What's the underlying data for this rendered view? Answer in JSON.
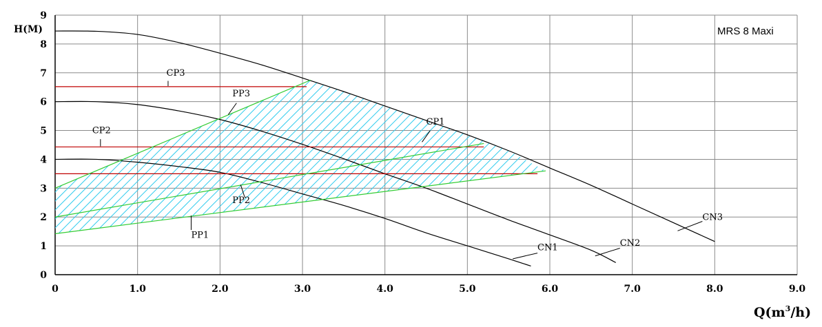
{
  "chart_data": {
    "type": "line",
    "title": "MRS 8 Maxi",
    "ylabel": "H(M)",
    "xlabel_prefix": "Q(",
    "xlabel_unit": "m",
    "xlabel_sup": "3",
    "xlabel_suffix": "/h)",
    "xlim": [
      0,
      9
    ],
    "ylim": [
      0,
      9
    ],
    "grid": true,
    "x_ticks": [
      "0",
      "1.0",
      "2.0",
      "3.0",
      "4.0",
      "5.0",
      "6.0",
      "7.0",
      "8.0",
      "9.0"
    ],
    "y_ticks": [
      "0",
      "1",
      "2",
      "3",
      "4",
      "5",
      "6",
      "7",
      "8",
      "9"
    ],
    "colors": {
      "cn": "#000000",
      "cp": "#c00000",
      "pp": "#33cc33",
      "hatch": "#33ccee"
    },
    "series": [
      {
        "name": "CN3",
        "group": "cn",
        "points": [
          [
            0,
            8.45
          ],
          [
            0.5,
            8.44
          ],
          [
            1.0,
            8.33
          ],
          [
            1.5,
            8.05
          ],
          [
            2.0,
            7.68
          ],
          [
            2.5,
            7.28
          ],
          [
            3.0,
            6.82
          ],
          [
            3.5,
            6.35
          ],
          [
            4.0,
            5.85
          ],
          [
            4.5,
            5.35
          ],
          [
            5.0,
            4.85
          ],
          [
            5.5,
            4.3
          ],
          [
            6.0,
            3.7
          ],
          [
            6.5,
            3.1
          ],
          [
            7.0,
            2.45
          ],
          [
            7.5,
            1.8
          ],
          [
            8.0,
            1.15
          ]
        ],
        "label_at": [
          7.85,
          1.9
        ]
      },
      {
        "name": "CN2",
        "group": "cn",
        "points": [
          [
            0,
            6.0
          ],
          [
            0.5,
            6.0
          ],
          [
            1.0,
            5.9
          ],
          [
            1.5,
            5.68
          ],
          [
            2.0,
            5.38
          ],
          [
            2.5,
            4.98
          ],
          [
            3.0,
            4.52
          ],
          [
            3.5,
            4.02
          ],
          [
            4.0,
            3.5
          ],
          [
            4.5,
            3.0
          ],
          [
            5.0,
            2.45
          ],
          [
            5.5,
            1.9
          ],
          [
            6.0,
            1.38
          ],
          [
            6.5,
            0.85
          ],
          [
            6.8,
            0.42
          ]
        ],
        "label_at": [
          6.85,
          1.0
        ]
      },
      {
        "name": "CN1",
        "group": "cn",
        "points": [
          [
            0,
            4.0
          ],
          [
            0.5,
            4.0
          ],
          [
            1.0,
            3.9
          ],
          [
            1.5,
            3.75
          ],
          [
            2.0,
            3.55
          ],
          [
            2.5,
            3.2
          ],
          [
            3.0,
            2.8
          ],
          [
            3.5,
            2.4
          ],
          [
            4.0,
            1.95
          ],
          [
            4.5,
            1.45
          ],
          [
            5.0,
            1.0
          ],
          [
            5.5,
            0.55
          ],
          [
            5.77,
            0.3
          ]
        ],
        "label_at": [
          5.85,
          0.85
        ]
      },
      {
        "name": "CP3",
        "group": "cp",
        "points": [
          [
            0,
            6.52
          ],
          [
            3.05,
            6.52
          ]
        ],
        "label_at": [
          1.35,
          6.9
        ]
      },
      {
        "name": "CP2",
        "group": "cp",
        "points": [
          [
            0,
            4.43
          ],
          [
            5.2,
            4.43
          ]
        ],
        "label_at": [
          0.45,
          4.9
        ]
      },
      {
        "name": "CP1",
        "group": "cp",
        "points": [
          [
            0,
            3.5
          ],
          [
            5.85,
            3.5
          ]
        ],
        "label_at": [
          4.5,
          5.2
        ]
      },
      {
        "name": "PP3",
        "group": "pp",
        "points": [
          [
            0,
            3.0
          ],
          [
            3.1,
            6.75
          ]
        ],
        "label_at": [
          2.15,
          6.18
        ]
      },
      {
        "name": "PP2",
        "group": "pp",
        "points": [
          [
            0,
            2.0
          ],
          [
            5.2,
            4.55
          ]
        ],
        "label_at": [
          2.15,
          2.48
        ]
      },
      {
        "name": "PP1",
        "group": "pp",
        "points": [
          [
            0,
            1.42
          ],
          [
            5.95,
            3.6
          ]
        ],
        "label_at": [
          1.65,
          1.28
        ]
      }
    ],
    "pointers": [
      {
        "name": "CP3",
        "from": [
          1.37,
          6.72
        ],
        "to": [
          1.37,
          6.54
        ]
      },
      {
        "name": "CP2",
        "from": [
          0.55,
          4.7
        ],
        "to": [
          0.55,
          4.45
        ]
      },
      {
        "name": "CP1",
        "from": [
          4.55,
          5.0
        ],
        "to": [
          4.45,
          4.6
        ]
      },
      {
        "name": "PP3",
        "from": [
          2.2,
          5.95
        ],
        "to": [
          2.1,
          5.55
        ]
      },
      {
        "name": "PP2",
        "from": [
          2.3,
          2.68
        ],
        "to": [
          2.25,
          3.12
        ]
      },
      {
        "name": "PP1",
        "from": [
          1.65,
          1.55
        ],
        "to": [
          1.65,
          2.05
        ]
      },
      {
        "name": "CN1",
        "from": [
          5.85,
          0.75
        ],
        "to": [
          5.55,
          0.55
        ]
      },
      {
        "name": "CN2",
        "from": [
          6.85,
          0.92
        ],
        "to": [
          6.55,
          0.65
        ]
      },
      {
        "name": "CN3",
        "from": [
          7.85,
          1.85
        ],
        "to": [
          7.55,
          1.52
        ]
      }
    ],
    "hatched_region": [
      [
        0,
        1.42
      ],
      [
        0,
        3.0
      ],
      [
        3.1,
        6.75
      ],
      [
        3.5,
        6.35
      ],
      [
        4.0,
        5.85
      ],
      [
        4.5,
        5.35
      ],
      [
        5.0,
        4.85
      ],
      [
        5.5,
        4.3
      ],
      [
        5.95,
        3.6
      ]
    ]
  }
}
